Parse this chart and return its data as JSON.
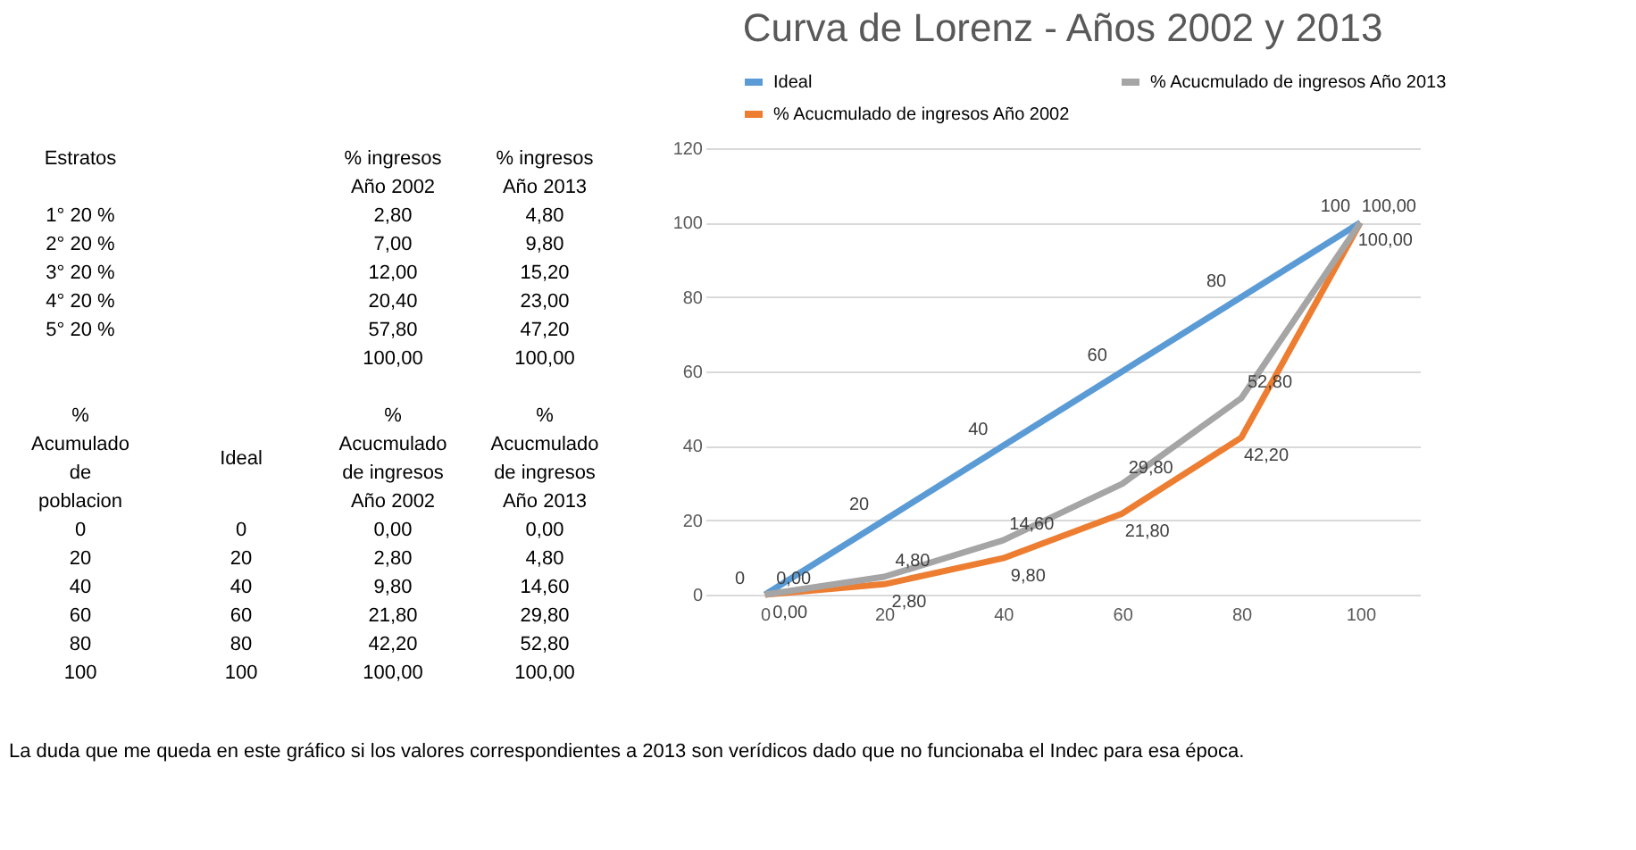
{
  "chart_data": {
    "type": "line",
    "title": "Curva de Lorenz  -  Años 2002 y 2013",
    "categories": [
      "0",
      "20",
      "40",
      "60",
      "80",
      "100"
    ],
    "series": [
      {
        "name": "Ideal",
        "color": "#5b9bd5",
        "values": [
          0,
          20,
          40,
          60,
          80,
          100
        ],
        "value_labels": [
          "0",
          "20",
          "40",
          "60",
          "80",
          "100"
        ]
      },
      {
        "name": "% Acucmulado de ingresos Año 2002",
        "color": "#ed7d31",
        "values": [
          0,
          2.8,
          9.8,
          21.8,
          42.2,
          100
        ],
        "value_labels": [
          "0,00",
          "2,80",
          "9,80",
          "21,80",
          "42,20",
          "100,00"
        ]
      },
      {
        "name": "% Acucmulado de ingresos Año 2013",
        "color": "#a5a5a5",
        "values": [
          0,
          4.8,
          14.6,
          29.8,
          52.8,
          100
        ],
        "value_labels": [
          "0,00",
          "4,80",
          "14,60",
          "29,80",
          "52,80",
          "100,00"
        ]
      }
    ],
    "ylim": [
      0,
      120
    ],
    "yticks": [
      0,
      20,
      40,
      60,
      80,
      100,
      120
    ],
    "grid": "y",
    "legend": "top",
    "marker": "none",
    "line_style": "solid",
    "annotations": [
      "Estratos",
      "% ingresos",
      "% ingresos",
      "Año 2002",
      "Año 2013",
      "1° 20 %",
      "2,80",
      "4,80",
      "2° 20 %",
      "7,00",
      "9,80",
      "3° 20 %",
      "12,00",
      "15,20",
      "4° 20 %",
      "20,40",
      "23,00",
      "5° 20 %",
      "57,80",
      "47,20",
      "100,00",
      "100,00",
      "%",
      "Acumulado",
      "de",
      "poblacion",
      "Ideal",
      "%",
      "Acucmulado",
      "de ingresos",
      "Año 2002",
      "%",
      "Acucmulado",
      "de ingresos",
      "Año 2013",
      "0",
      "0",
      "0,00",
      "0,00",
      "20",
      "20",
      "2,80",
      "4,80",
      "40",
      "40",
      "9,80",
      "14,60",
      "60",
      "60",
      "21,80",
      "29,80",
      "80",
      "80",
      "42,20",
      "52,80",
      "100",
      "100",
      "100,00",
      "100,00",
      "La duda que me queda en este gráfico si los valores correspondientes a 2013 son verídicos dado que no funcionaba el Indec para esa época."
    ]
  }
}
